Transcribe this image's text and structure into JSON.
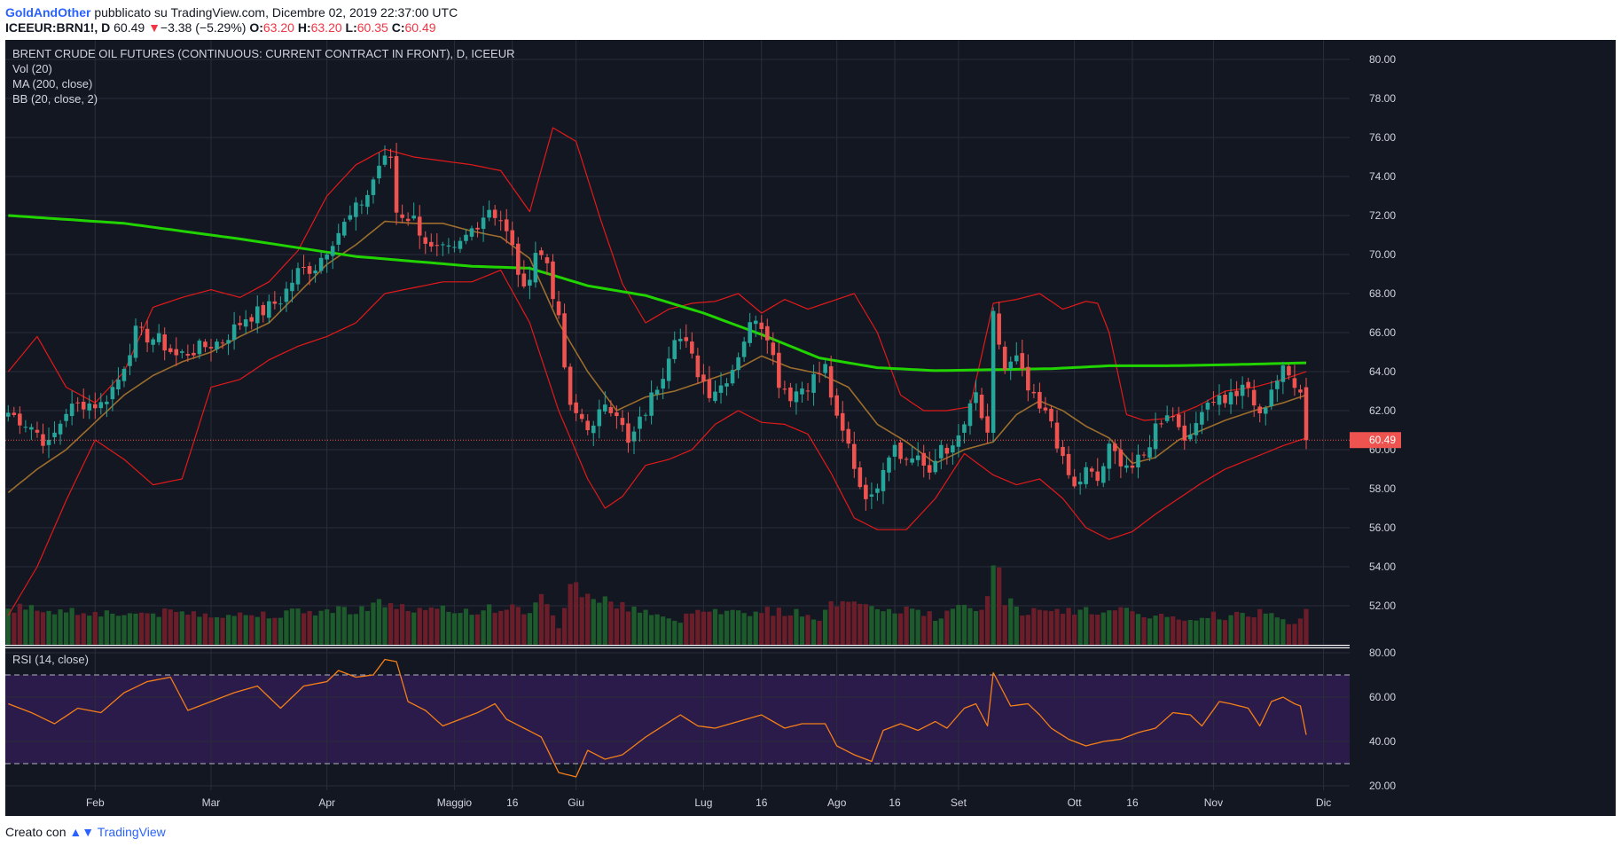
{
  "header": {
    "author": "GoldAndOther",
    "published_text": "pubblicato su TradingView.com, Dicembre 02, 2019 22:37:00 UTC",
    "symbol": "ICEEUR:BRN1!, D",
    "last": "60.49",
    "change_arrow": "▼",
    "change": "−3.38 (−5.29%)",
    "o_label": "O:",
    "o_value": "63.20",
    "h_label": "H:",
    "h_value": "63.20",
    "l_label": "L:",
    "l_value": "60.35",
    "c_label": "C:",
    "c_value": "60.49"
  },
  "legend": {
    "title": "BRENT CRUDE OIL FUTURES (CONTINUOUS: CURRENT CONTRACT IN FRONT), D, ICEEUR",
    "vol": "Vol (20)",
    "ma": "MA (200, close)",
    "bb": "BB (20, close, 2)",
    "rsi": "RSI (14, close)"
  },
  "colors": {
    "background": "#131722",
    "grid": "#2a2e39",
    "up": "#26a69a",
    "down": "#ef5350",
    "ma200": "#21d400",
    "bb_band": "#e31919",
    "bb_basis": "#9c6d2c",
    "rsi_line": "#f57f17",
    "rsi_band": "#2b1b4a",
    "price_label": "#ef5350"
  },
  "footer": {
    "created_with": "Creato con",
    "brand": "TradingView"
  },
  "chart_data": {
    "type": "candlestick",
    "title": "BRENT CRUDE OIL FUTURES (CONTINUOUS: CURRENT CONTRACT IN FRONT), D, ICEEUR",
    "price_axis": {
      "ylim": [
        50.0,
        81.0
      ],
      "ticks": [
        "52.00",
        "54.00",
        "56.00",
        "58.00",
        "60.00",
        "62.00",
        "64.00",
        "66.00",
        "68.00",
        "70.00",
        "72.00",
        "74.00",
        "76.00",
        "78.00",
        "80.00"
      ]
    },
    "rsi_axis": {
      "ylim": [
        18,
        82
      ],
      "ticks": [
        "20.00",
        "40.00",
        "60.00",
        "80.00"
      ],
      "band": [
        30,
        70
      ]
    },
    "last_price_label": "60.49",
    "last_price": 60.49,
    "x_labels": [
      "Feb",
      "Mar",
      "Apr",
      "Maggio",
      "16",
      "Giu",
      "Lug",
      "16",
      "Ago",
      "16",
      "Set",
      "Ott",
      "16",
      "Nov",
      "Dic"
    ],
    "x_label_index": [
      15,
      35,
      55,
      77,
      87,
      98,
      120,
      130,
      143,
      153,
      164,
      184,
      194,
      208,
      227
    ],
    "total_slots": 232,
    "first_index": 0,
    "price_anchors": [
      [
        0,
        61.9
      ],
      [
        4,
        61.2
      ],
      [
        7,
        60.2
      ],
      [
        10,
        62.0
      ],
      [
        13,
        62.4
      ],
      [
        16,
        62.3
      ],
      [
        19,
        63.6
      ],
      [
        22,
        66.0
      ],
      [
        26,
        65.6
      ],
      [
        29,
        64.8
      ],
      [
        33,
        65.2
      ],
      [
        37,
        65.6
      ],
      [
        41,
        66.8
      ],
      [
        44,
        67.1
      ],
      [
        47,
        67.7
      ],
      [
        50,
        69.1
      ],
      [
        53,
        69.4
      ],
      [
        56,
        70.8
      ],
      [
        59,
        71.9
      ],
      [
        62,
        73.1
      ],
      [
        64,
        74.6
      ],
      [
        66,
        75.0
      ],
      [
        67,
        72.2
      ],
      [
        70,
        71.8
      ],
      [
        73,
        70.2
      ],
      [
        77,
        70.1
      ],
      [
        80,
        71.3
      ],
      [
        83,
        72.4
      ],
      [
        85,
        71.8
      ],
      [
        87,
        70.3
      ],
      [
        89,
        68.0
      ],
      [
        91,
        70.2
      ],
      [
        93,
        69.6
      ],
      [
        95,
        66.5
      ],
      [
        97,
        62.0
      ],
      [
        99,
        61.6
      ],
      [
        101,
        61.0
      ],
      [
        103,
        62.5
      ],
      [
        105,
        62.0
      ],
      [
        107,
        60.2
      ],
      [
        110,
        62.0
      ],
      [
        113,
        64.0
      ],
      [
        115,
        66.0
      ],
      [
        117,
        65.3
      ],
      [
        119,
        64.0
      ],
      [
        121,
        63.0
      ],
      [
        123,
        63.3
      ],
      [
        125,
        64.2
      ],
      [
        127,
        65.7
      ],
      [
        129,
        66.9
      ],
      [
        131,
        66.0
      ],
      [
        133,
        63.5
      ],
      [
        135,
        62.8
      ],
      [
        138,
        63.4
      ],
      [
        141,
        64.2
      ],
      [
        143,
        61.4
      ],
      [
        145,
        60.2
      ],
      [
        147,
        58.2
      ],
      [
        149,
        57.4
      ],
      [
        151,
        59.3
      ],
      [
        153,
        60.4
      ],
      [
        155,
        59.4
      ],
      [
        157,
        59.8
      ],
      [
        159,
        58.5
      ],
      [
        161,
        60.3
      ],
      [
        163,
        59.9
      ],
      [
        165,
        61.3
      ],
      [
        167,
        62.8
      ],
      [
        169,
        60.5
      ],
      [
        170,
        66.8
      ],
      [
        172,
        64.1
      ],
      [
        174,
        64.6
      ],
      [
        176,
        63.0
      ],
      [
        178,
        62.0
      ],
      [
        180,
        61.5
      ],
      [
        182,
        59.3
      ],
      [
        184,
        58.0
      ],
      [
        186,
        58.9
      ],
      [
        188,
        58.4
      ],
      [
        190,
        60.0
      ],
      [
        192,
        59.5
      ],
      [
        194,
        59.1
      ],
      [
        196,
        59.6
      ],
      [
        198,
        61.2
      ],
      [
        200,
        62.0
      ],
      [
        202,
        61.3
      ],
      [
        204,
        60.4
      ],
      [
        206,
        62.3
      ],
      [
        208,
        62.7
      ],
      [
        210,
        62.6
      ],
      [
        212,
        62.9
      ],
      [
        214,
        63.1
      ],
      [
        216,
        61.6
      ],
      [
        218,
        63.2
      ],
      [
        220,
        64.0
      ],
      [
        222,
        63.5
      ],
      [
        223,
        63.2
      ],
      [
        224,
        60.49
      ]
    ],
    "ma200_anchors": [
      [
        0,
        72.0
      ],
      [
        20,
        71.6
      ],
      [
        40,
        70.8
      ],
      [
        60,
        69.9
      ],
      [
        80,
        69.4
      ],
      [
        90,
        69.3
      ],
      [
        100,
        68.4
      ],
      [
        110,
        67.9
      ],
      [
        120,
        67.0
      ],
      [
        130,
        65.9
      ],
      [
        140,
        64.7
      ],
      [
        150,
        64.2
      ],
      [
        160,
        64.05
      ],
      [
        170,
        64.1
      ],
      [
        180,
        64.15
      ],
      [
        190,
        64.3
      ],
      [
        200,
        64.3
      ],
      [
        210,
        64.35
      ],
      [
        224,
        64.45
      ]
    ],
    "bb_upper_anchors": [
      [
        0,
        64.0
      ],
      [
        5,
        65.8
      ],
      [
        10,
        63.2
      ],
      [
        15,
        62.4
      ],
      [
        20,
        64.0
      ],
      [
        25,
        67.3
      ],
      [
        30,
        67.8
      ],
      [
        35,
        68.2
      ],
      [
        40,
        67.8
      ],
      [
        45,
        68.6
      ],
      [
        50,
        70.2
      ],
      [
        55,
        73.0
      ],
      [
        60,
        74.6
      ],
      [
        65,
        75.4
      ],
      [
        70,
        75.0
      ],
      [
        75,
        74.8
      ],
      [
        80,
        74.6
      ],
      [
        85,
        74.3
      ],
      [
        90,
        72.2
      ],
      [
        94,
        76.5
      ],
      [
        98,
        75.8
      ],
      [
        102,
        72.0
      ],
      [
        106,
        68.5
      ],
      [
        110,
        66.5
      ],
      [
        114,
        67.2
      ],
      [
        118,
        67.5
      ],
      [
        122,
        67.6
      ],
      [
        126,
        68.0
      ],
      [
        130,
        67.0
      ],
      [
        134,
        67.7
      ],
      [
        138,
        67.2
      ],
      [
        142,
        67.6
      ],
      [
        146,
        68.0
      ],
      [
        150,
        66.0
      ],
      [
        154,
        62.8
      ],
      [
        158,
        62.0
      ],
      [
        162,
        62.0
      ],
      [
        166,
        62.2
      ],
      [
        170,
        67.5
      ],
      [
        174,
        67.7
      ],
      [
        178,
        68.0
      ],
      [
        182,
        67.2
      ],
      [
        186,
        67.6
      ],
      [
        188,
        67.5
      ],
      [
        190,
        66.0
      ],
      [
        193,
        61.8
      ],
      [
        196,
        61.5
      ],
      [
        200,
        61.6
      ],
      [
        205,
        62.2
      ],
      [
        210,
        63.0
      ],
      [
        215,
        63.2
      ],
      [
        220,
        63.6
      ],
      [
        224,
        64.0
      ]
    ],
    "bb_basis_anchors": [
      [
        0,
        57.8
      ],
      [
        5,
        59.0
      ],
      [
        10,
        60.0
      ],
      [
        15,
        61.4
      ],
      [
        20,
        62.8
      ],
      [
        25,
        63.8
      ],
      [
        30,
        64.5
      ],
      [
        35,
        65.0
      ],
      [
        40,
        65.8
      ],
      [
        45,
        66.5
      ],
      [
        50,
        68.0
      ],
      [
        55,
        69.5
      ],
      [
        60,
        70.5
      ],
      [
        65,
        71.7
      ],
      [
        70,
        71.6
      ],
      [
        75,
        71.6
      ],
      [
        80,
        71.2
      ],
      [
        85,
        70.9
      ],
      [
        90,
        69.8
      ],
      [
        95,
        66.5
      ],
      [
        100,
        64.0
      ],
      [
        105,
        62.0
      ],
      [
        110,
        62.7
      ],
      [
        115,
        63.0
      ],
      [
        120,
        63.5
      ],
      [
        125,
        64.0
      ],
      [
        130,
        64.8
      ],
      [
        135,
        64.2
      ],
      [
        140,
        63.9
      ],
      [
        145,
        63.2
      ],
      [
        150,
        61.3
      ],
      [
        155,
        60.4
      ],
      [
        160,
        59.3
      ],
      [
        165,
        60.0
      ],
      [
        170,
        60.4
      ],
      [
        174,
        61.8
      ],
      [
        178,
        62.5
      ],
      [
        182,
        62.0
      ],
      [
        186,
        61.2
      ],
      [
        190,
        60.6
      ],
      [
        194,
        59.3
      ],
      [
        198,
        59.6
      ],
      [
        202,
        60.5
      ],
      [
        206,
        61.0
      ],
      [
        210,
        61.5
      ],
      [
        215,
        62.0
      ],
      [
        220,
        62.4
      ],
      [
        224,
        62.8
      ]
    ],
    "bb_lower_anchors": [
      [
        0,
        51.5
      ],
      [
        5,
        54.0
      ],
      [
        10,
        57.4
      ],
      [
        15,
        60.5
      ],
      [
        20,
        59.5
      ],
      [
        25,
        58.2
      ],
      [
        30,
        58.5
      ],
      [
        35,
        63.2
      ],
      [
        40,
        63.6
      ],
      [
        45,
        64.6
      ],
      [
        50,
        65.3
      ],
      [
        55,
        65.8
      ],
      [
        60,
        66.5
      ],
      [
        65,
        68.0
      ],
      [
        70,
        68.3
      ],
      [
        75,
        68.6
      ],
      [
        80,
        68.6
      ],
      [
        85,
        69.2
      ],
      [
        90,
        66.5
      ],
      [
        95,
        62.0
      ],
      [
        100,
        58.5
      ],
      [
        103,
        57.0
      ],
      [
        106,
        57.6
      ],
      [
        110,
        59.2
      ],
      [
        114,
        59.5
      ],
      [
        118,
        60.0
      ],
      [
        122,
        61.3
      ],
      [
        126,
        62.0
      ],
      [
        130,
        61.4
      ],
      [
        134,
        61.3
      ],
      [
        138,
        60.8
      ],
      [
        142,
        58.8
      ],
      [
        146,
        56.5
      ],
      [
        150,
        55.9
      ],
      [
        155,
        55.9
      ],
      [
        160,
        57.5
      ],
      [
        165,
        59.8
      ],
      [
        170,
        58.7
      ],
      [
        174,
        58.2
      ],
      [
        178,
        58.5
      ],
      [
        182,
        57.5
      ],
      [
        186,
        56.0
      ],
      [
        190,
        55.4
      ],
      [
        194,
        55.8
      ],
      [
        198,
        56.7
      ],
      [
        202,
        57.5
      ],
      [
        206,
        58.3
      ],
      [
        210,
        59.0
      ],
      [
        215,
        59.6
      ],
      [
        220,
        60.2
      ],
      [
        224,
        60.6
      ]
    ],
    "volume_anchors": [
      [
        0,
        0.6
      ],
      [
        10,
        0.55
      ],
      [
        20,
        0.5
      ],
      [
        30,
        0.52
      ],
      [
        40,
        0.48
      ],
      [
        50,
        0.52
      ],
      [
        60,
        0.58
      ],
      [
        65,
        0.68
      ],
      [
        70,
        0.55
      ],
      [
        80,
        0.55
      ],
      [
        85,
        0.6
      ],
      [
        90,
        0.55
      ],
      [
        92,
        0.75
      ],
      [
        95,
        0.3
      ],
      [
        97,
        1.0
      ],
      [
        100,
        0.8
      ],
      [
        105,
        0.65
      ],
      [
        110,
        0.55
      ],
      [
        115,
        0.35
      ],
      [
        120,
        0.62
      ],
      [
        125,
        0.52
      ],
      [
        130,
        0.55
      ],
      [
        135,
        0.52
      ],
      [
        140,
        0.45
      ],
      [
        143,
        0.7
      ],
      [
        146,
        0.78
      ],
      [
        150,
        0.5
      ],
      [
        155,
        0.58
      ],
      [
        160,
        0.45
      ],
      [
        165,
        0.6
      ],
      [
        168,
        0.55
      ],
      [
        169,
        0.9
      ],
      [
        170,
        1.45
      ],
      [
        172,
        0.75
      ],
      [
        175,
        0.55
      ],
      [
        180,
        0.5
      ],
      [
        185,
        0.55
      ],
      [
        190,
        0.55
      ],
      [
        195,
        0.5
      ],
      [
        200,
        0.45
      ],
      [
        205,
        0.35
      ],
      [
        208,
        0.5
      ],
      [
        210,
        0.45
      ],
      [
        215,
        0.5
      ],
      [
        218,
        0.55
      ],
      [
        220,
        0.42
      ],
      [
        222,
        0.35
      ],
      [
        224,
        0.55
      ]
    ],
    "rsi_anchors": [
      [
        0,
        57
      ],
      [
        4,
        53
      ],
      [
        8,
        48
      ],
      [
        12,
        55
      ],
      [
        16,
        53
      ],
      [
        20,
        62
      ],
      [
        24,
        67
      ],
      [
        28,
        69
      ],
      [
        31,
        54
      ],
      [
        35,
        58
      ],
      [
        39,
        62
      ],
      [
        43,
        65
      ],
      [
        47,
        55
      ],
      [
        51,
        65
      ],
      [
        55,
        67
      ],
      [
        57,
        72
      ],
      [
        60,
        69
      ],
      [
        63,
        70
      ],
      [
        65,
        77
      ],
      [
        67,
        76
      ],
      [
        69,
        58
      ],
      [
        72,
        54
      ],
      [
        75,
        47
      ],
      [
        78,
        50
      ],
      [
        81,
        53
      ],
      [
        84,
        57
      ],
      [
        86,
        50
      ],
      [
        89,
        46
      ],
      [
        92,
        42
      ],
      [
        95,
        26
      ],
      [
        98,
        24
      ],
      [
        100,
        36
      ],
      [
        103,
        32
      ],
      [
        106,
        34
      ],
      [
        110,
        42
      ],
      [
        113,
        47
      ],
      [
        116,
        52
      ],
      [
        119,
        47
      ],
      [
        122,
        46
      ],
      [
        126,
        49
      ],
      [
        130,
        52
      ],
      [
        134,
        46
      ],
      [
        137,
        48
      ],
      [
        141,
        48
      ],
      [
        143,
        38
      ],
      [
        146,
        34
      ],
      [
        149,
        31
      ],
      [
        151,
        45
      ],
      [
        154,
        48
      ],
      [
        157,
        45
      ],
      [
        160,
        49
      ],
      [
        162,
        46
      ],
      [
        165,
        55
      ],
      [
        167,
        57
      ],
      [
        169,
        47
      ],
      [
        170,
        71
      ],
      [
        173,
        56
      ],
      [
        176,
        57
      ],
      [
        178,
        52
      ],
      [
        180,
        46
      ],
      [
        183,
        41
      ],
      [
        186,
        38
      ],
      [
        189,
        40
      ],
      [
        192,
        41
      ],
      [
        195,
        44
      ],
      [
        198,
        46
      ],
      [
        201,
        53
      ],
      [
        204,
        52
      ],
      [
        206,
        47
      ],
      [
        209,
        58
      ],
      [
        211,
        57
      ],
      [
        214,
        55
      ],
      [
        216,
        47
      ],
      [
        218,
        58
      ],
      [
        220,
        60
      ],
      [
        222,
        57
      ],
      [
        223,
        56
      ],
      [
        224,
        43
      ]
    ]
  }
}
